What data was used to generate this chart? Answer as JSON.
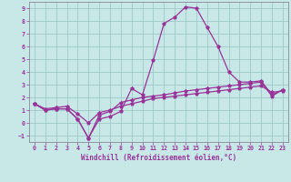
{
  "xlabel": "Windchill (Refroidissement éolien,°C)",
  "background_color": "#c8e8e8",
  "grid_color": "#a0c8c8",
  "line_color": "#993399",
  "xlim": [
    -0.5,
    23.5
  ],
  "ylim": [
    -1.5,
    9.5
  ],
  "xticks": [
    0,
    1,
    2,
    3,
    4,
    5,
    6,
    7,
    8,
    9,
    10,
    11,
    12,
    13,
    14,
    15,
    16,
    17,
    18,
    19,
    20,
    21,
    22,
    23
  ],
  "yticks": [
    -1,
    0,
    1,
    2,
    3,
    4,
    5,
    6,
    7,
    8,
    9
  ],
  "line1_x": [
    0,
    1,
    2,
    3,
    4,
    5,
    6,
    7,
    8,
    9,
    10,
    11,
    12,
    13,
    14,
    15,
    16,
    17,
    18,
    19,
    20,
    21,
    22,
    23
  ],
  "line1_y": [
    1.5,
    1.0,
    1.1,
    1.1,
    0.3,
    -1.2,
    0.3,
    0.5,
    0.9,
    2.7,
    2.2,
    4.9,
    7.8,
    8.3,
    9.1,
    9.0,
    7.5,
    6.0,
    4.0,
    3.2,
    3.2,
    3.3,
    2.2,
    2.6
  ],
  "line2_x": [
    0,
    1,
    2,
    3,
    4,
    5,
    6,
    7,
    8,
    9,
    10,
    11,
    12,
    13,
    14,
    15,
    16,
    17,
    18,
    19,
    20,
    21,
    22,
    23
  ],
  "line2_y": [
    1.5,
    1.0,
    1.1,
    1.1,
    0.3,
    -1.2,
    0.6,
    0.9,
    1.6,
    1.8,
    2.0,
    2.1,
    2.2,
    2.35,
    2.5,
    2.6,
    2.7,
    2.8,
    2.9,
    3.0,
    3.1,
    3.2,
    2.1,
    2.6
  ],
  "line3_x": [
    0,
    1,
    2,
    3,
    4,
    5,
    6,
    7,
    8,
    9,
    10,
    11,
    12,
    13,
    14,
    15,
    16,
    17,
    18,
    19,
    20,
    21,
    22,
    23
  ],
  "line3_y": [
    1.5,
    1.1,
    1.2,
    1.3,
    0.7,
    0.0,
    0.8,
    1.0,
    1.3,
    1.5,
    1.7,
    1.9,
    2.0,
    2.1,
    2.2,
    2.3,
    2.4,
    2.5,
    2.6,
    2.7,
    2.8,
    2.9,
    2.4,
    2.5
  ]
}
